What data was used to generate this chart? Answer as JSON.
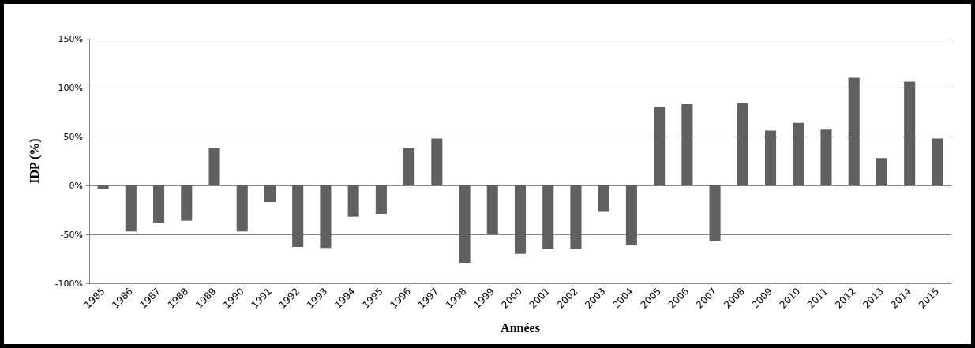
{
  "chart_data": {
    "type": "bar",
    "xlabel": "Années",
    "ylabel": "IDP (%)",
    "categories": [
      "1985",
      "1986",
      "1987",
      "1988",
      "1989",
      "1990",
      "1991",
      "1992",
      "1993",
      "1994",
      "1995",
      "1996",
      "1997",
      "1998",
      "1999",
      "2000",
      "2001",
      "2002",
      "2003",
      "2004",
      "2005",
      "2006",
      "2007",
      "2008",
      "2009",
      "2010",
      "2011",
      "2012",
      "2013",
      "2014",
      "2015"
    ],
    "values": [
      -4,
      -47,
      -38,
      -36,
      38,
      -47,
      -17,
      -63,
      -64,
      -32,
      -29,
      38,
      48,
      -79,
      -50,
      -70,
      -65,
      -65,
      -27,
      -61,
      80,
      83,
      -57,
      84,
      56,
      64,
      57,
      110,
      28,
      106,
      48
    ],
    "color": "#606060",
    "ylim": [
      -100,
      150
    ],
    "yticks": [
      {
        "value": -100,
        "label": "-100%"
      },
      {
        "value": -50,
        "label": "-50%"
      },
      {
        "value": 0,
        "label": "0%"
      },
      {
        "value": 50,
        "label": "50%"
      },
      {
        "value": 100,
        "label": "100%"
      },
      {
        "value": 150,
        "label": "150%"
      }
    ],
    "grid": "y"
  }
}
